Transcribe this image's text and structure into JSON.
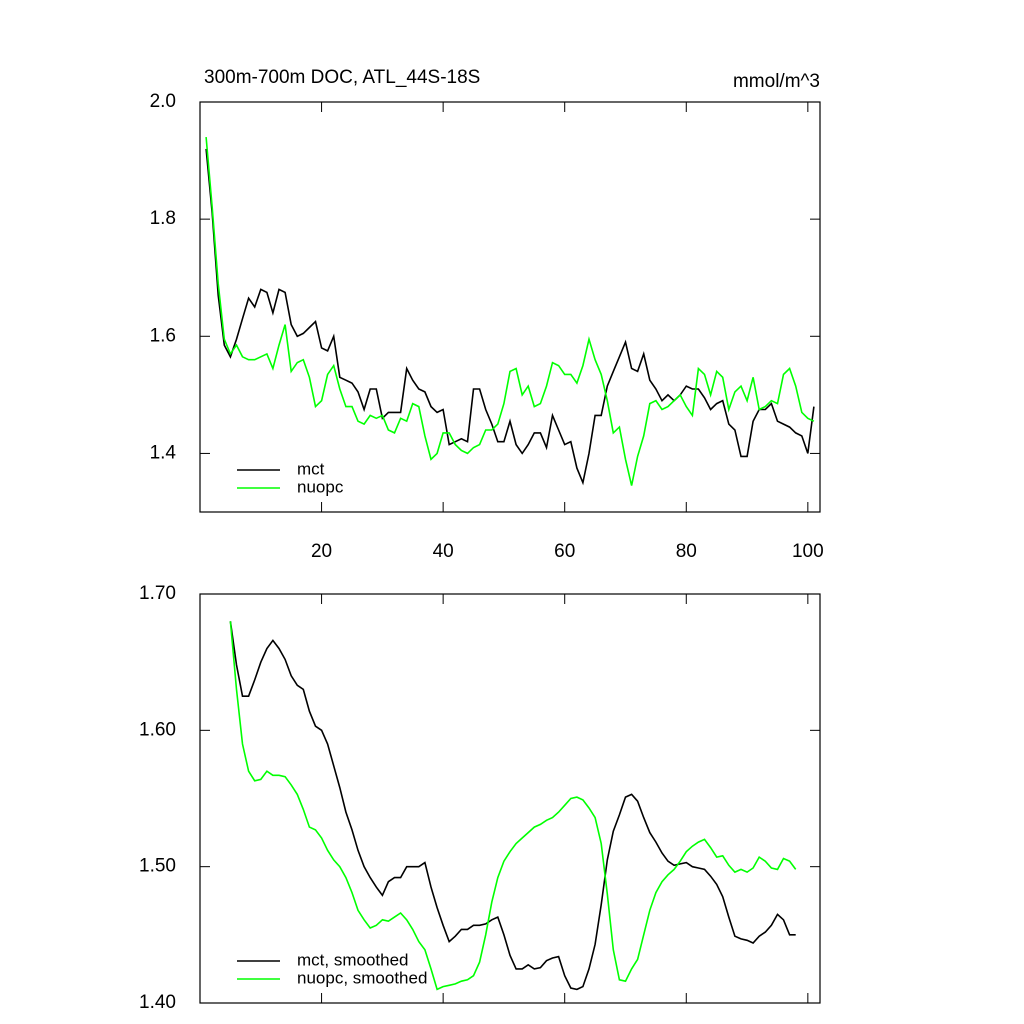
{
  "chart_data": [
    {
      "type": "line",
      "title": "300m-700m DOC, ATL_44S-18S",
      "units": "mmol/m^3",
      "x": [
        1,
        2,
        3,
        4,
        5,
        6,
        7,
        8,
        9,
        10,
        11,
        12,
        13,
        14,
        15,
        16,
        17,
        18,
        19,
        20,
        21,
        22,
        23,
        24,
        25,
        26,
        27,
        28,
        29,
        30,
        31,
        32,
        33,
        34,
        35,
        36,
        37,
        38,
        39,
        40,
        41,
        42,
        43,
        44,
        45,
        46,
        47,
        48,
        49,
        50,
        51,
        52,
        53,
        54,
        55,
        56,
        57,
        58,
        59,
        60,
        61,
        62,
        63,
        64,
        65,
        66,
        67,
        68,
        69,
        70,
        71,
        72,
        73,
        74,
        75,
        76,
        77,
        78,
        79,
        80,
        81,
        82,
        83,
        84,
        85,
        86,
        87,
        88,
        89,
        90,
        91,
        92,
        93,
        94,
        95,
        96,
        97,
        98,
        99,
        100,
        101
      ],
      "series": [
        {
          "name": "mct",
          "color": "#000000",
          "values": [
            1.92,
            1.81,
            1.67,
            1.585,
            1.565,
            1.595,
            1.63,
            1.665,
            1.65,
            1.68,
            1.675,
            1.64,
            1.68,
            1.675,
            1.62,
            1.6,
            1.605,
            1.615,
            1.625,
            1.58,
            1.575,
            1.6,
            1.53,
            1.525,
            1.52,
            1.505,
            1.475,
            1.51,
            1.51,
            1.46,
            1.47,
            1.47,
            1.47,
            1.545,
            1.525,
            1.51,
            1.505,
            1.48,
            1.47,
            1.475,
            1.415,
            1.42,
            1.425,
            1.42,
            1.51,
            1.51,
            1.475,
            1.45,
            1.42,
            1.42,
            1.455,
            1.415,
            1.4,
            1.415,
            1.435,
            1.435,
            1.41,
            1.465,
            1.44,
            1.415,
            1.42,
            1.375,
            1.35,
            1.4,
            1.465,
            1.465,
            1.515,
            1.54,
            1.565,
            1.59,
            1.545,
            1.54,
            1.57,
            1.525,
            1.51,
            1.49,
            1.5,
            1.49,
            1.5,
            1.515,
            1.51,
            1.51,
            1.495,
            1.475,
            1.485,
            1.49,
            1.45,
            1.44,
            1.395,
            1.395,
            1.455,
            1.475,
            1.475,
            1.485,
            1.455,
            1.45,
            1.445,
            1.435,
            1.43,
            1.4,
            1.48
          ]
        },
        {
          "name": "nuopc",
          "color": "#00ff00",
          "values": [
            1.94,
            1.82,
            1.69,
            1.595,
            1.57,
            1.585,
            1.565,
            1.56,
            1.56,
            1.565,
            1.57,
            1.545,
            1.585,
            1.62,
            1.54,
            1.555,
            1.56,
            1.53,
            1.48,
            1.49,
            1.535,
            1.55,
            1.51,
            1.48,
            1.48,
            1.455,
            1.45,
            1.465,
            1.46,
            1.465,
            1.44,
            1.435,
            1.46,
            1.455,
            1.485,
            1.48,
            1.43,
            1.39,
            1.4,
            1.435,
            1.435,
            1.415,
            1.405,
            1.4,
            1.41,
            1.415,
            1.44,
            1.44,
            1.45,
            1.485,
            1.54,
            1.545,
            1.5,
            1.515,
            1.48,
            1.485,
            1.515,
            1.555,
            1.55,
            1.535,
            1.535,
            1.52,
            1.55,
            1.595,
            1.56,
            1.535,
            1.49,
            1.435,
            1.445,
            1.39,
            1.345,
            1.395,
            1.43,
            1.485,
            1.49,
            1.475,
            1.48,
            1.49,
            1.5,
            1.48,
            1.465,
            1.545,
            1.535,
            1.5,
            1.54,
            1.53,
            1.475,
            1.505,
            1.515,
            1.49,
            1.53,
            1.475,
            1.48,
            1.49,
            1.485,
            1.535,
            1.545,
            1.515,
            1.47,
            1.46,
            1.455
          ]
        }
      ],
      "xlim": [
        0,
        102
      ],
      "xticks": [
        20,
        40,
        60,
        80,
        100
      ],
      "show_xtick_labels": true,
      "ylim": [
        1.3,
        2.0
      ],
      "yticks": [
        {
          "value": 2,
          "label": "2.0"
        },
        1.8,
        1.6,
        1.4
      ],
      "legend": "lower left"
    },
    {
      "type": "line",
      "x": [
        5,
        6,
        7,
        8,
        9,
        10,
        11,
        12,
        13,
        14,
        15,
        16,
        17,
        18,
        19,
        20,
        21,
        22,
        23,
        24,
        25,
        26,
        27,
        28,
        29,
        30,
        31,
        32,
        33,
        34,
        35,
        36,
        37,
        38,
        39,
        40,
        41,
        42,
        43,
        44,
        45,
        46,
        47,
        48,
        49,
        50,
        51,
        52,
        53,
        54,
        55,
        56,
        57,
        58,
        59,
        60,
        61,
        62,
        63,
        64,
        65,
        66,
        67,
        68,
        69,
        70,
        71,
        72,
        73,
        74,
        75,
        76,
        77,
        78,
        79,
        80,
        81,
        82,
        83,
        84,
        85,
        86,
        87,
        88,
        89,
        90,
        91,
        92,
        93,
        94,
        95,
        96,
        97,
        98
      ],
      "series": [
        {
          "name": "mct, smoothed",
          "color": "#000000",
          "values": [
            1.68,
            1.648,
            1.625,
            1.625,
            1.637,
            1.65,
            1.66,
            1.666,
            1.66,
            1.652,
            1.64,
            1.633,
            1.63,
            1.614,
            1.603,
            1.6,
            1.59,
            1.574,
            1.558,
            1.54,
            1.527,
            1.512,
            1.5,
            1.492,
            1.485,
            1.479,
            1.489,
            1.492,
            1.492,
            1.5,
            1.5,
            1.5,
            1.503,
            1.485,
            1.47,
            1.457,
            1.445,
            1.449,
            1.454,
            1.454,
            1.457,
            1.457,
            1.458,
            1.461,
            1.463,
            1.45,
            1.435,
            1.425,
            1.425,
            1.428,
            1.425,
            1.426,
            1.431,
            1.433,
            1.434,
            1.42,
            1.411,
            1.41,
            1.412,
            1.425,
            1.443,
            1.472,
            1.505,
            1.526,
            1.538,
            1.551,
            1.553,
            1.548,
            1.536,
            1.525,
            1.518,
            1.51,
            1.504,
            1.501,
            1.502,
            1.503,
            1.5,
            1.499,
            1.498,
            1.493,
            1.487,
            1.478,
            1.463,
            1.449,
            1.447,
            1.446,
            1.444,
            1.449,
            1.452,
            1.457,
            1.465,
            1.461,
            1.45,
            1.45
          ]
        },
        {
          "name": "nuopc, smoothed",
          "color": "#00ff00",
          "values": [
            1.68,
            1.63,
            1.59,
            1.57,
            1.563,
            1.564,
            1.57,
            1.567,
            1.567,
            1.566,
            1.56,
            1.553,
            1.542,
            1.529,
            1.527,
            1.521,
            1.512,
            1.505,
            1.5,
            1.492,
            1.481,
            1.468,
            1.461,
            1.455,
            1.457,
            1.461,
            1.46,
            1.463,
            1.466,
            1.461,
            1.454,
            1.445,
            1.439,
            1.425,
            1.41,
            1.412,
            1.413,
            1.414,
            1.416,
            1.417,
            1.42,
            1.43,
            1.45,
            1.474,
            1.492,
            1.504,
            1.511,
            1.517,
            1.521,
            1.525,
            1.529,
            1.531,
            1.534,
            1.536,
            1.54,
            1.545,
            1.55,
            1.551,
            1.549,
            1.543,
            1.536,
            1.517,
            1.48,
            1.439,
            1.417,
            1.416,
            1.425,
            1.432,
            1.45,
            1.468,
            1.481,
            1.489,
            1.494,
            1.498,
            1.504,
            1.511,
            1.515,
            1.518,
            1.52,
            1.514,
            1.507,
            1.508,
            1.501,
            1.496,
            1.498,
            1.496,
            1.499,
            1.507,
            1.504,
            1.499,
            1.498,
            1.506,
            1.504,
            1.498
          ]
        }
      ],
      "xlim": [
        0,
        102
      ],
      "xticks": [
        20,
        40,
        60,
        80,
        100
      ],
      "show_xtick_labels": false,
      "ylim": [
        1.4,
        1.7
      ],
      "yticks": [
        {
          "value": 1.7,
          "label": "1.70"
        },
        {
          "value": 1.6,
          "label": "1.60"
        },
        {
          "value": 1.5,
          "label": "1.50"
        },
        {
          "value": 1.4,
          "label": "1.40"
        }
      ],
      "legend": "lower left"
    }
  ]
}
